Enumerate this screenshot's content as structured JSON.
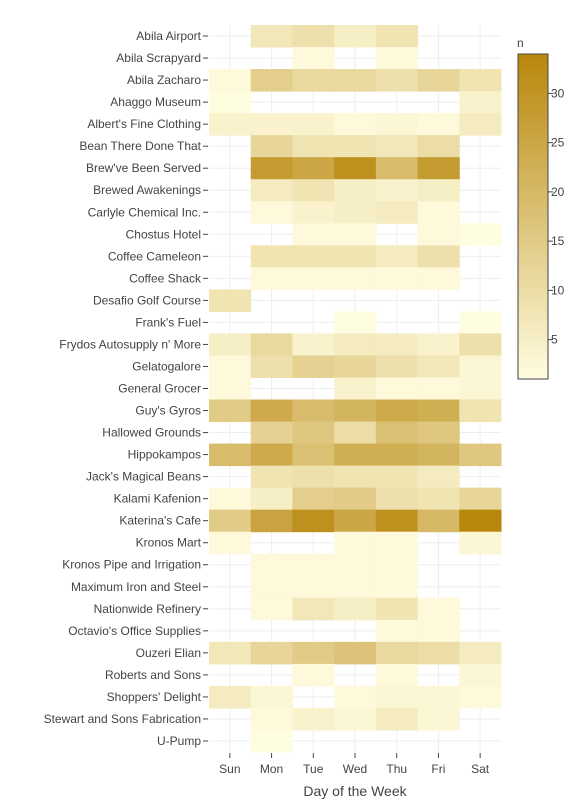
{
  "chart_data": {
    "type": "heatmap",
    "title": "",
    "xlabel": "Day of the Week",
    "ylabel": "",
    "x": [
      "Sun",
      "Mon",
      "Tue",
      "Wed",
      "Thu",
      "Fri",
      "Sat"
    ],
    "y": [
      "Abila Airport",
      "Abila Scrapyard",
      "Abila Zacharo",
      "Ahaggo Museum",
      "Albert's Fine Clothing",
      "Bean There Done That",
      "Brew've Been Served",
      "Brewed Awakenings",
      "Carlyle Chemical Inc.",
      "Chostus Hotel",
      "Coffee Cameleon",
      "Coffee Shack",
      "Desafio Golf Course",
      "Frank's Fuel",
      "Frydos Autosupply n' More",
      "Gelatogalore",
      "General Grocer",
      "Guy's Gyros",
      "Hallowed Grounds",
      "Hippokampos",
      "Jack's Magical Beans",
      "Kalami Kafenion",
      "Katerina's Cafe",
      "Kronos Mart",
      "Kronos Pipe and Irrigation",
      "Maximum Iron and Steel",
      "Nationwide Refinery",
      "Octavio's Office Supplies",
      "Ouzeri Elian",
      "Roberts and Sons",
      "Shoppers' Delight",
      "Stewart and Sons Fabrication",
      "U-Pump"
    ],
    "z": [
      [
        null,
        7,
        9,
        5,
        8,
        null,
        null
      ],
      [
        null,
        null,
        2,
        null,
        2,
        null,
        null
      ],
      [
        2,
        14,
        11,
        11,
        9,
        12,
        8
      ],
      [
        1,
        null,
        null,
        null,
        null,
        null,
        4
      ],
      [
        4,
        4,
        4,
        2,
        3,
        2,
        6
      ],
      [
        null,
        12,
        8,
        8,
        7,
        10,
        null
      ],
      [
        null,
        28,
        25,
        31,
        19,
        28,
        null
      ],
      [
        null,
        6,
        8,
        5,
        4,
        5,
        null
      ],
      [
        null,
        2,
        4,
        5,
        6,
        2,
        null
      ],
      [
        null,
        null,
        2,
        2,
        null,
        2,
        1
      ],
      [
        null,
        8,
        8,
        8,
        6,
        9,
        null
      ],
      [
        null,
        2,
        2,
        2,
        2,
        2,
        null
      ],
      [
        8,
        null,
        null,
        null,
        null,
        null,
        null
      ],
      [
        null,
        null,
        null,
        1,
        null,
        null,
        1
      ],
      [
        5,
        11,
        4,
        6,
        6,
        4,
        9
      ],
      [
        2,
        9,
        13,
        12,
        9,
        7,
        3
      ],
      [
        2,
        null,
        null,
        4,
        2,
        2,
        3
      ],
      [
        15,
        24,
        19,
        21,
        24,
        23,
        8
      ],
      [
        null,
        13,
        16,
        10,
        18,
        16,
        null
      ],
      [
        19,
        24,
        18,
        23,
        23,
        21,
        16
      ],
      [
        null,
        8,
        9,
        8,
        8,
        6,
        null
      ],
      [
        2,
        5,
        14,
        15,
        9,
        8,
        12
      ],
      [
        15,
        26,
        31,
        25,
        31,
        20,
        34
      ],
      [
        2,
        null,
        null,
        2,
        2,
        null,
        3
      ],
      [
        null,
        2,
        2,
        2,
        2,
        null,
        null
      ],
      [
        null,
        2,
        2,
        2,
        2,
        null,
        null
      ],
      [
        null,
        2,
        7,
        5,
        8,
        2,
        null
      ],
      [
        null,
        null,
        null,
        null,
        2,
        2,
        null
      ],
      [
        7,
        12,
        15,
        17,
        11,
        10,
        6
      ],
      [
        null,
        null,
        2,
        null,
        2,
        null,
        3
      ],
      [
        6,
        3,
        null,
        2,
        3,
        3,
        2
      ],
      [
        null,
        2,
        4,
        3,
        6,
        3,
        null
      ],
      [
        null,
        1,
        null,
        null,
        null,
        null,
        null
      ]
    ],
    "colorscale": {
      "title": "n",
      "min": 1,
      "max": 34,
      "low_color": "#FFFDE0",
      "high_color": "#B8860B",
      "ticks": [
        5,
        10,
        15,
        20,
        25,
        30
      ]
    },
    "grid": true,
    "legend": "colorbar-right"
  }
}
